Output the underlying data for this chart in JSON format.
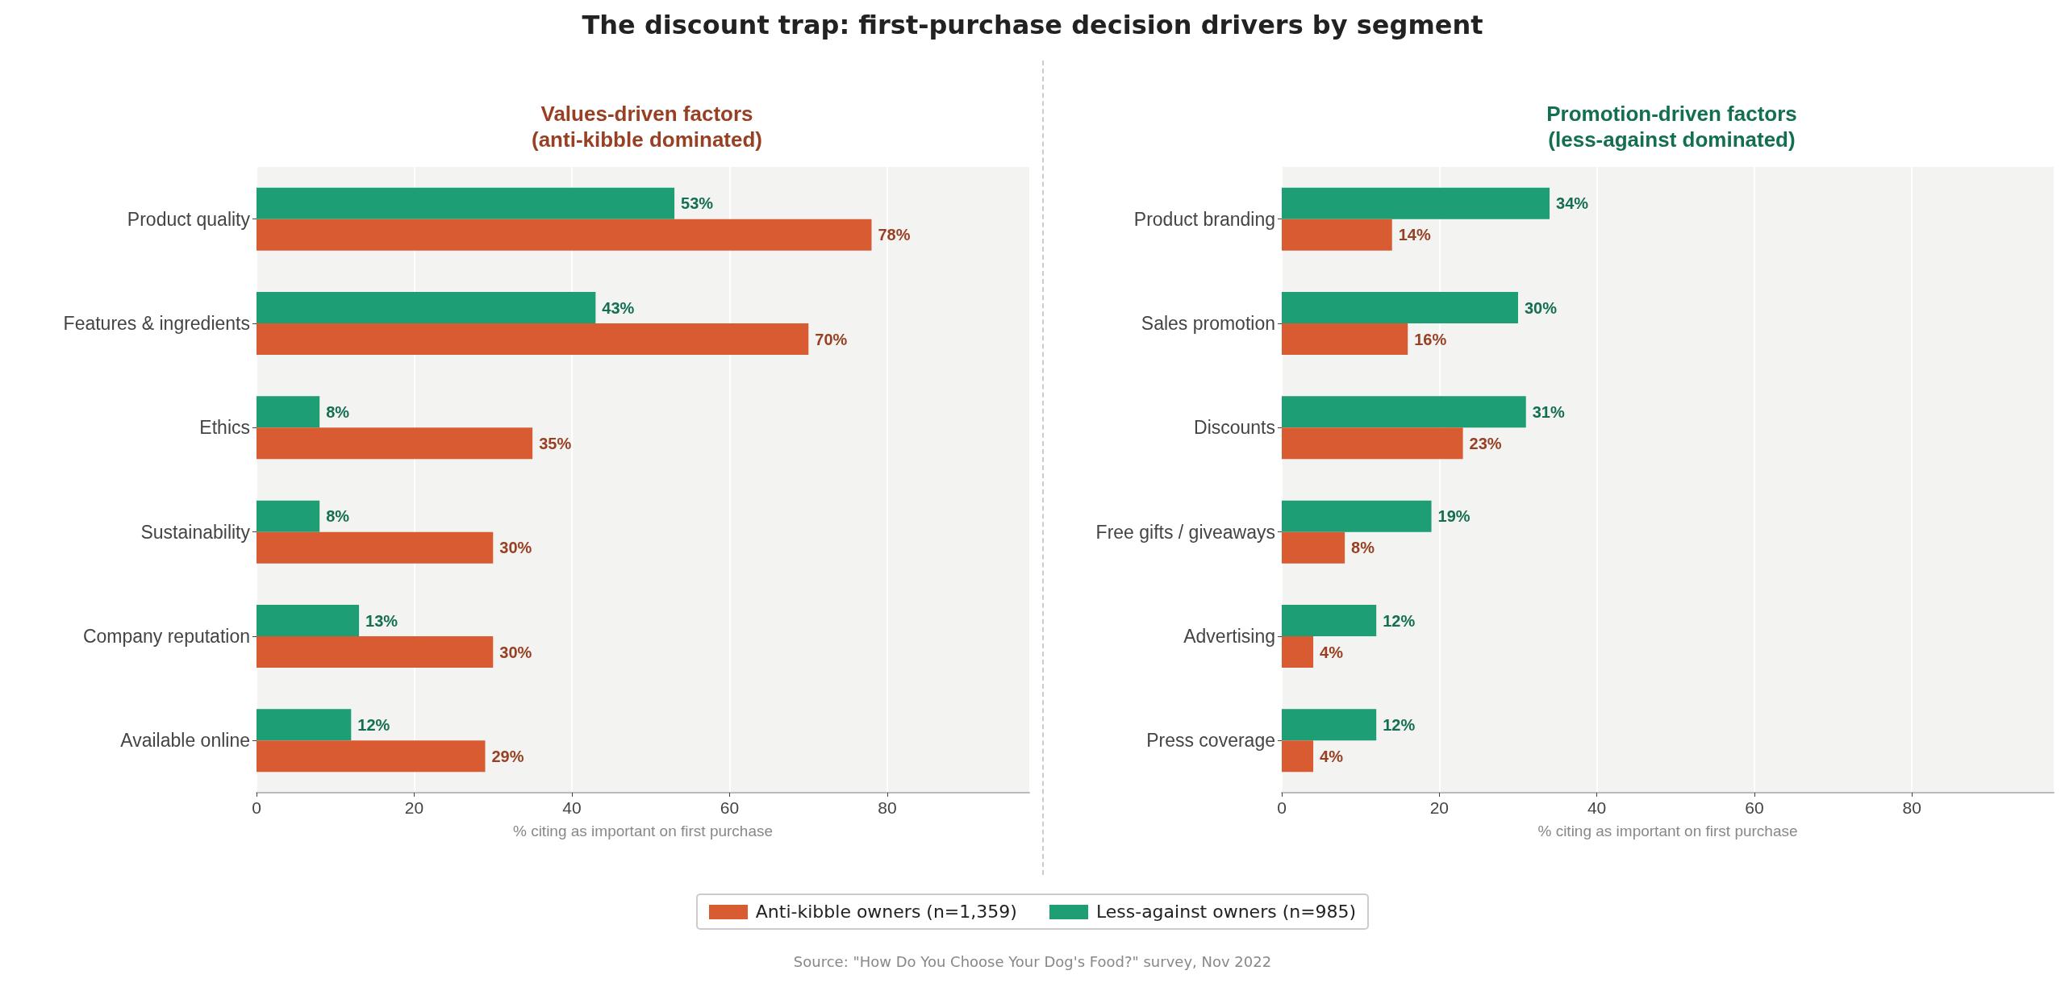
{
  "chart_data": [
    {
      "type": "bar",
      "orientation": "horizontal",
      "title": "The discount trap: first-purchase decision drivers by segment",
      "subtitle": "Values-driven factors\n(anti-kibble dominated)",
      "xlabel": "% citing as important on first purchase",
      "categories": [
        "Product quality",
        "Features & ingredients",
        "Ethics",
        "Sustainability",
        "Company reputation",
        "Available online"
      ],
      "series": [
        {
          "name": "Anti-kibble owners (n=1,359)",
          "color": "#d95b32",
          "values": [
            78,
            70,
            35,
            30,
            30,
            29
          ],
          "value_labels": [
            "78%",
            "70%",
            "35%",
            "30%",
            "30%",
            "29%"
          ]
        },
        {
          "name": "Less-against owners (n=985)",
          "color": "#1d9e75",
          "values": [
            53,
            43,
            8,
            8,
            13,
            12
          ],
          "value_labels": [
            "53%",
            "43%",
            "8%",
            "8%",
            "13%",
            "12%"
          ]
        }
      ],
      "xlim": [
        0,
        98
      ],
      "xticks": [
        0,
        20,
        40,
        60,
        80
      ],
      "grid": "x",
      "legend": "bottom",
      "annotations": [
        "Source: \"How Do You Choose Your Dog's Food?\" survey, Nov 2022"
      ]
    },
    {
      "type": "bar",
      "orientation": "horizontal",
      "subtitle": "Promotion-driven factors\n(less-against dominated)",
      "xlabel": "% citing as important on first purchase",
      "categories": [
        "Product branding",
        "Sales promotion",
        "Discounts",
        "Free gifts / giveaways",
        "Advertising",
        "Press coverage"
      ],
      "series": [
        {
          "name": "Anti-kibble owners (n=1,359)",
          "color": "#d95b32",
          "values": [
            14,
            16,
            23,
            8,
            4,
            4
          ],
          "value_labels": [
            "14%",
            "16%",
            "23%",
            "8%",
            "4%",
            "4%"
          ]
        },
        {
          "name": "Less-against owners (n=985)",
          "color": "#1d9e75",
          "values": [
            34,
            30,
            31,
            19,
            12,
            12
          ],
          "value_labels": [
            "34%",
            "30%",
            "31%",
            "19%",
            "12%",
            "12%"
          ]
        }
      ],
      "xlim": [
        0,
        98
      ],
      "xticks": [
        0,
        20,
        40,
        60,
        80
      ],
      "grid": "x"
    }
  ]
}
